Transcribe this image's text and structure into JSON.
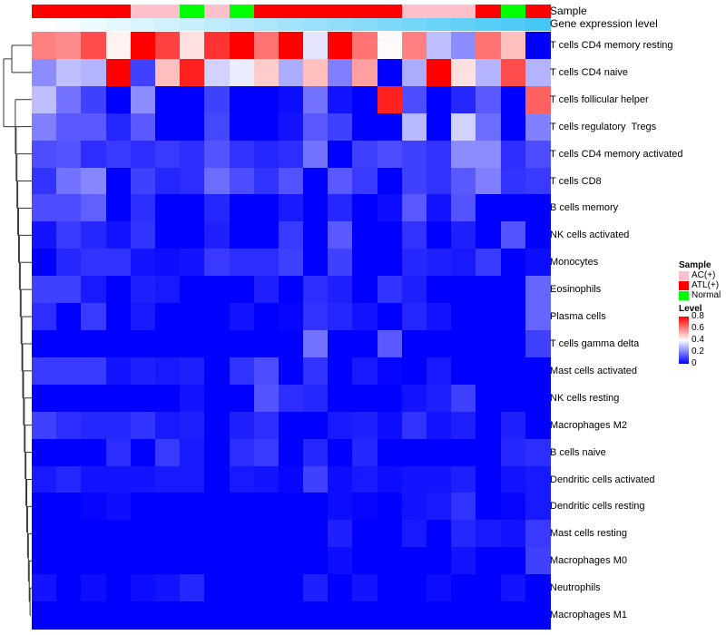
{
  "chart_data": {
    "type": "heatmap",
    "annotation_labels": {
      "sample": "Sample",
      "expression": "Gene expression level"
    },
    "sample_groups": [
      "ATL(+)",
      "ATL(+)",
      "ATL(+)",
      "ATL(+)",
      "AC(+)",
      "AC(+)",
      "Normal",
      "AC(+)",
      "Normal",
      "ATL(+)",
      "ATL(+)",
      "ATL(+)",
      "ATL(+)",
      "ATL(+)",
      "ATL(+)",
      "AC(+)",
      "AC(+)",
      "AC(+)",
      "ATL(+)",
      "Normal",
      "ATL(+)"
    ],
    "expression_level": [
      0.0,
      0.05,
      0.1,
      0.15,
      0.2,
      0.25,
      0.3,
      0.35,
      0.4,
      0.45,
      0.5,
      0.55,
      0.6,
      0.65,
      0.7,
      0.75,
      0.8,
      0.85,
      0.9,
      0.95,
      1.0
    ],
    "rows": [
      "T cells CD4 memory resting",
      "T cells CD4 naive",
      "T cells follicular helper",
      "T cells regulatory  Tregs",
      "T cells CD4 memory activated",
      "T cells CD8",
      "B cells memory",
      "NK cells activated",
      "Monocytes",
      "Eosinophils",
      "Plasma cells",
      "T cells gamma delta",
      "Mast cells activated",
      "NK cells resting",
      "Macrophages M2",
      "B cells naive",
      "Dendritic cells activated",
      "Dendritic cells resting",
      "Mast cells resting",
      "Macrophages M0",
      "Neutrophils",
      "Macrophages M1"
    ],
    "values": [
      [
        0.6,
        0.58,
        0.68,
        0.42,
        0.8,
        0.7,
        0.45,
        0.72,
        0.8,
        0.62,
        0.8,
        0.36,
        0.8,
        0.62,
        0.41,
        0.6,
        0.3,
        0.22,
        0.62,
        0.5,
        0
      ],
      [
        0.22,
        0.3,
        0.28,
        0.8,
        0.1,
        0.5,
        0.75,
        0.33,
        0.37,
        0.48,
        0.27,
        0.5,
        0.2,
        0.55,
        0,
        0.27,
        0.8,
        0.45,
        0.28,
        0.68,
        0.28
      ],
      [
        0.3,
        0.18,
        0.1,
        0,
        0.22,
        0,
        0,
        0.1,
        0,
        0,
        0.02,
        0.18,
        0.03,
        0,
        0.75,
        0.12,
        0,
        0.06,
        0.14,
        0,
        0.65
      ],
      [
        0.2,
        0.14,
        0.14,
        0.06,
        0.14,
        0,
        0,
        0.11,
        0,
        0,
        0.03,
        0.14,
        0.1,
        0,
        0,
        0.29,
        0,
        0.33,
        0.17,
        0,
        0.2
      ],
      [
        0.12,
        0.13,
        0.07,
        0.09,
        0.07,
        0.09,
        0.07,
        0.13,
        0.08,
        0.06,
        0.07,
        0.18,
        0,
        0.1,
        0.12,
        0.1,
        0.08,
        0.22,
        0.22,
        0.07,
        0.12
      ],
      [
        0.08,
        0.18,
        0.21,
        0,
        0.1,
        0.06,
        0.07,
        0.17,
        0.12,
        0.08,
        0.13,
        0,
        0.14,
        0.09,
        0,
        0.1,
        0.08,
        0.14,
        0.2,
        0.08,
        0.09
      ],
      [
        0.12,
        0.12,
        0.15,
        0,
        0.07,
        0,
        0,
        0.06,
        0,
        0,
        0.04,
        0,
        0.06,
        0,
        0.02,
        0.14,
        0.03,
        0.13,
        0,
        0,
        0
      ],
      [
        0.03,
        0.09,
        0.06,
        0.03,
        0.08,
        0,
        0,
        0.05,
        0,
        0,
        0.09,
        0,
        0.14,
        0,
        0,
        0.08,
        0,
        0.05,
        0,
        0.13,
        0
      ],
      [
        0,
        0.06,
        0.08,
        0.08,
        0.03,
        0.02,
        0.03,
        0.09,
        0.07,
        0.07,
        0.1,
        0,
        0.1,
        0,
        0,
        0.06,
        0.05,
        0.04,
        0.09,
        0,
        0.02
      ],
      [
        0.1,
        0.1,
        0.04,
        0,
        0.05,
        0.04,
        0,
        0,
        0,
        0.05,
        0,
        0.07,
        0.05,
        0,
        0.08,
        0.05,
        0,
        0,
        0,
        0,
        0.16
      ],
      [
        0.07,
        0,
        0.09,
        0,
        0.04,
        0,
        0,
        0,
        0.03,
        0,
        0.01,
        0.08,
        0.06,
        0.03,
        0,
        0.06,
        0.03,
        0,
        0,
        0,
        0.16
      ],
      [
        0,
        0,
        0,
        0,
        0,
        0,
        0,
        0,
        0,
        0,
        0,
        0.18,
        0,
        0,
        0.14,
        0,
        0,
        0,
        0,
        0,
        0.1
      ],
      [
        0.09,
        0.09,
        0.09,
        0.03,
        0.05,
        0.04,
        0.05,
        0,
        0.08,
        0.12,
        0,
        0.08,
        0,
        0.04,
        0.01,
        0,
        0.04,
        0,
        0,
        0,
        0
      ],
      [
        0,
        0,
        0,
        0,
        0,
        0,
        0.03,
        0,
        0,
        0.13,
        0.07,
        0.06,
        0,
        0,
        0,
        0.03,
        0.05,
        0.1,
        0,
        0,
        0
      ],
      [
        0.1,
        0.07,
        0.06,
        0.06,
        0.08,
        0.04,
        0.05,
        0,
        0.05,
        0.07,
        0,
        0,
        0.04,
        0.05,
        0.02,
        0.08,
        0.03,
        0.05,
        0,
        0.05,
        0
      ],
      [
        0,
        0,
        0,
        0.07,
        0,
        0.09,
        0.04,
        0,
        0.07,
        0.09,
        0,
        0.06,
        0,
        0.06,
        0,
        0,
        0,
        0,
        0,
        0.06,
        0.07
      ],
      [
        0.04,
        0.06,
        0.03,
        0.03,
        0.03,
        0.04,
        0.04,
        0,
        0.04,
        0.03,
        0.01,
        0.1,
        0.02,
        0.04,
        0.02,
        0.03,
        0.03,
        0.05,
        0,
        0.03,
        0.04
      ],
      [
        0,
        0,
        0.01,
        0.02,
        0,
        0,
        0,
        0,
        0,
        0,
        0,
        0,
        0.02,
        0.01,
        0,
        0.03,
        0.04,
        0.08,
        0,
        0.01,
        0.04
      ],
      [
        0,
        0,
        0,
        0,
        0,
        0,
        0,
        0,
        0,
        0,
        0,
        0,
        0.05,
        0,
        0,
        0.04,
        0,
        0.06,
        0.04,
        0.03,
        0.09
      ],
      [
        0,
        0,
        0,
        0,
        0,
        0,
        0,
        0,
        0,
        0,
        0,
        0,
        0.02,
        0,
        0,
        0,
        0,
        0.03,
        0,
        0,
        0.1
      ],
      [
        0.03,
        0,
        0.02,
        0,
        0.02,
        0.03,
        0.06,
        0,
        0,
        0,
        0,
        0.05,
        0,
        0.03,
        0,
        0,
        0.02,
        0,
        0,
        0.03,
        0
      ],
      [
        0,
        0,
        0,
        0,
        0,
        0,
        0,
        0,
        0,
        0,
        0,
        0,
        0,
        0,
        0,
        0,
        0,
        0,
        0,
        0,
        0
      ]
    ],
    "color_range": [
      0,
      0.8
    ],
    "legend": {
      "sample_title": "Sample",
      "sample_items": [
        {
          "label": "AC(+)",
          "color": "#FFC0CB"
        },
        {
          "label": "ATL(+)",
          "color": "#FF0000"
        },
        {
          "label": "Normal",
          "color": "#00FF00"
        }
      ],
      "level_title": "Level",
      "level_ticks": [
        "0.8",
        "0.6",
        "0.4",
        "0.2",
        "0"
      ],
      "low_color": "#0000FF",
      "mid_color": "#FFFFFF",
      "high_color": "#FF0000"
    },
    "legend_placement": "right"
  }
}
